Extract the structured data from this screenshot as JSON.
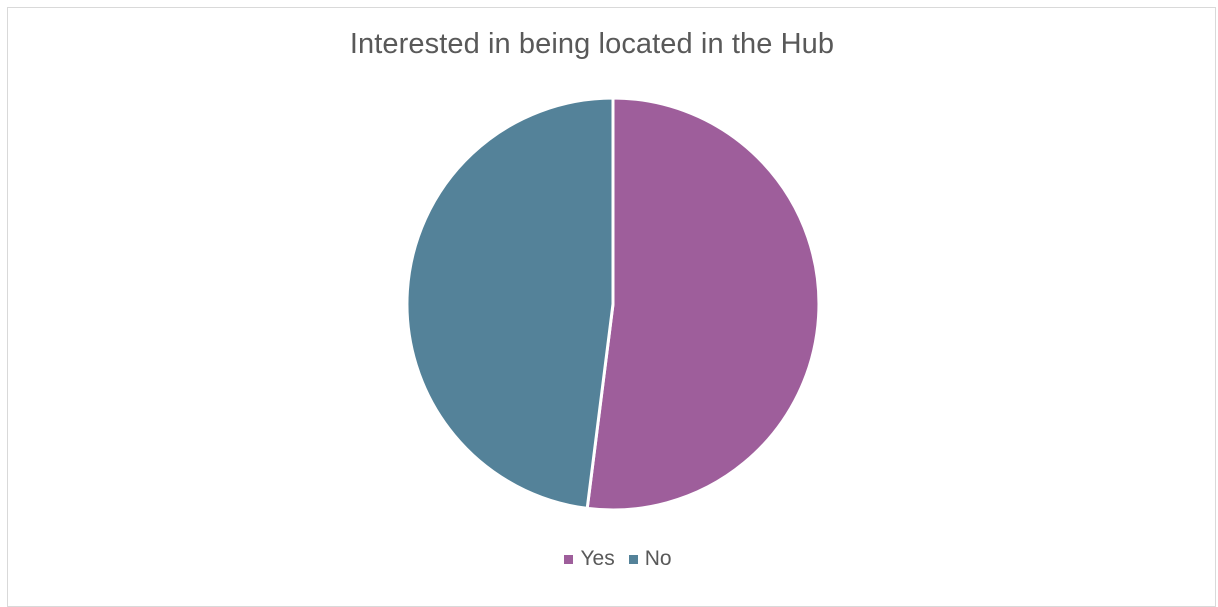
{
  "chart_data": {
    "type": "pie",
    "title": "Interested in being located in the Hub",
    "categories": [
      "Yes",
      "No"
    ],
    "values": [
      52,
      48
    ],
    "colors": [
      "#9e5e9b",
      "#548299"
    ],
    "legend_position": "bottom",
    "slice_border_color": "#ffffff",
    "start_angle_deg": 0,
    "direction": "clockwise"
  }
}
